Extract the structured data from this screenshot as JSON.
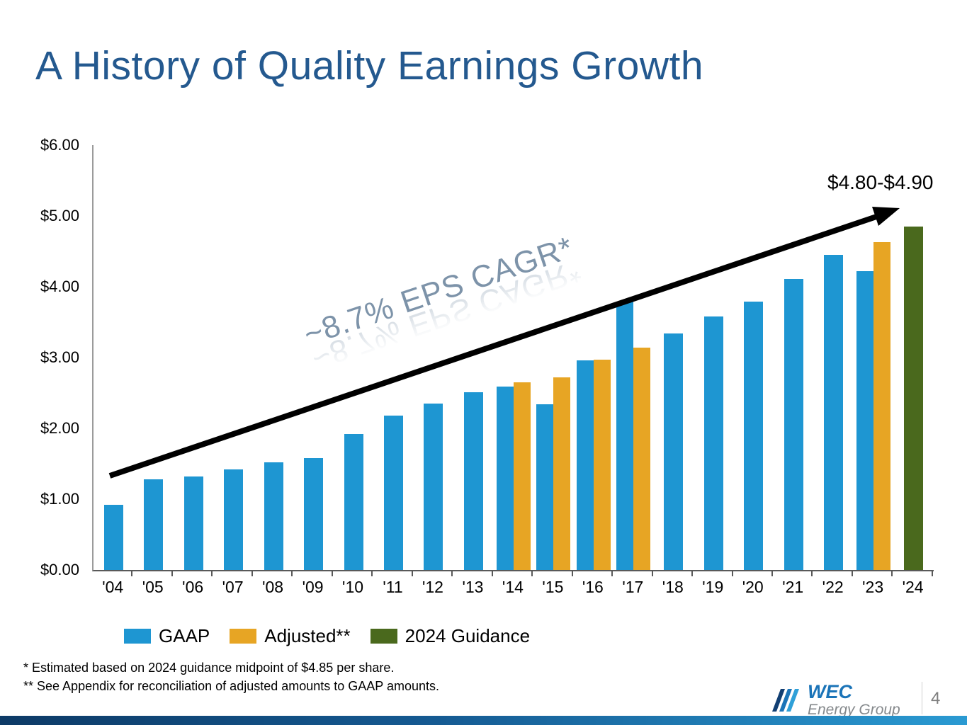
{
  "title": "A History of Quality Earnings Growth",
  "colors": {
    "gaap": "#1e96d2",
    "adjusted": "#e7a524",
    "guidance": "#4a691d",
    "title": "#24598f",
    "cagr_text": "#7d93a9",
    "accent_bar_left": "#0d3a66",
    "accent_bar_right": "#2a9ad2"
  },
  "chart_data": {
    "type": "bar",
    "title": "A History of Quality Earnings Growth",
    "xlabel": "",
    "ylabel": "",
    "ylim": [
      0,
      6
    ],
    "yticks": [
      "$0.00",
      "$1.00",
      "$2.00",
      "$3.00",
      "$4.00",
      "$5.00",
      "$6.00"
    ],
    "grid": false,
    "legend_position": "bottom",
    "categories": [
      "'04",
      "'05",
      "'06",
      "'07",
      "'08",
      "'09",
      "'10",
      "'11",
      "'12",
      "'13",
      "'14",
      "'15",
      "'16",
      "'17",
      "'18",
      "'19",
      "'20",
      "'21",
      "'22",
      "'23",
      "'24"
    ],
    "series": [
      {
        "name": "GAAP",
        "color_key": "gaap",
        "values": [
          0.92,
          1.28,
          1.32,
          1.42,
          1.52,
          1.58,
          1.92,
          2.18,
          2.35,
          2.51,
          2.59,
          2.34,
          2.96,
          3.79,
          3.34,
          3.58,
          3.79,
          4.11,
          4.45,
          4.22,
          null
        ]
      },
      {
        "name": "Adjusted**",
        "color_key": "adjusted",
        "values": [
          null,
          null,
          null,
          null,
          null,
          null,
          null,
          null,
          null,
          null,
          2.65,
          2.72,
          2.97,
          3.14,
          null,
          null,
          null,
          null,
          null,
          4.63,
          null
        ]
      },
      {
        "name": "2024 Guidance",
        "color_key": "guidance",
        "values": [
          null,
          null,
          null,
          null,
          null,
          null,
          null,
          null,
          null,
          null,
          null,
          null,
          null,
          null,
          null,
          null,
          null,
          null,
          null,
          null,
          4.85
        ]
      }
    ],
    "annotations": {
      "cagr": "~8.7% EPS CAGR*",
      "guidance_range": "$4.80-$4.90"
    }
  },
  "footnotes": [
    "* Estimated based on 2024 guidance midpoint of $4.85 per share.",
    "** See Appendix for reconciliation of adjusted amounts to GAAP amounts."
  ],
  "logo": {
    "line1": "WEC",
    "line2": "Energy Group"
  },
  "page_number": "4"
}
